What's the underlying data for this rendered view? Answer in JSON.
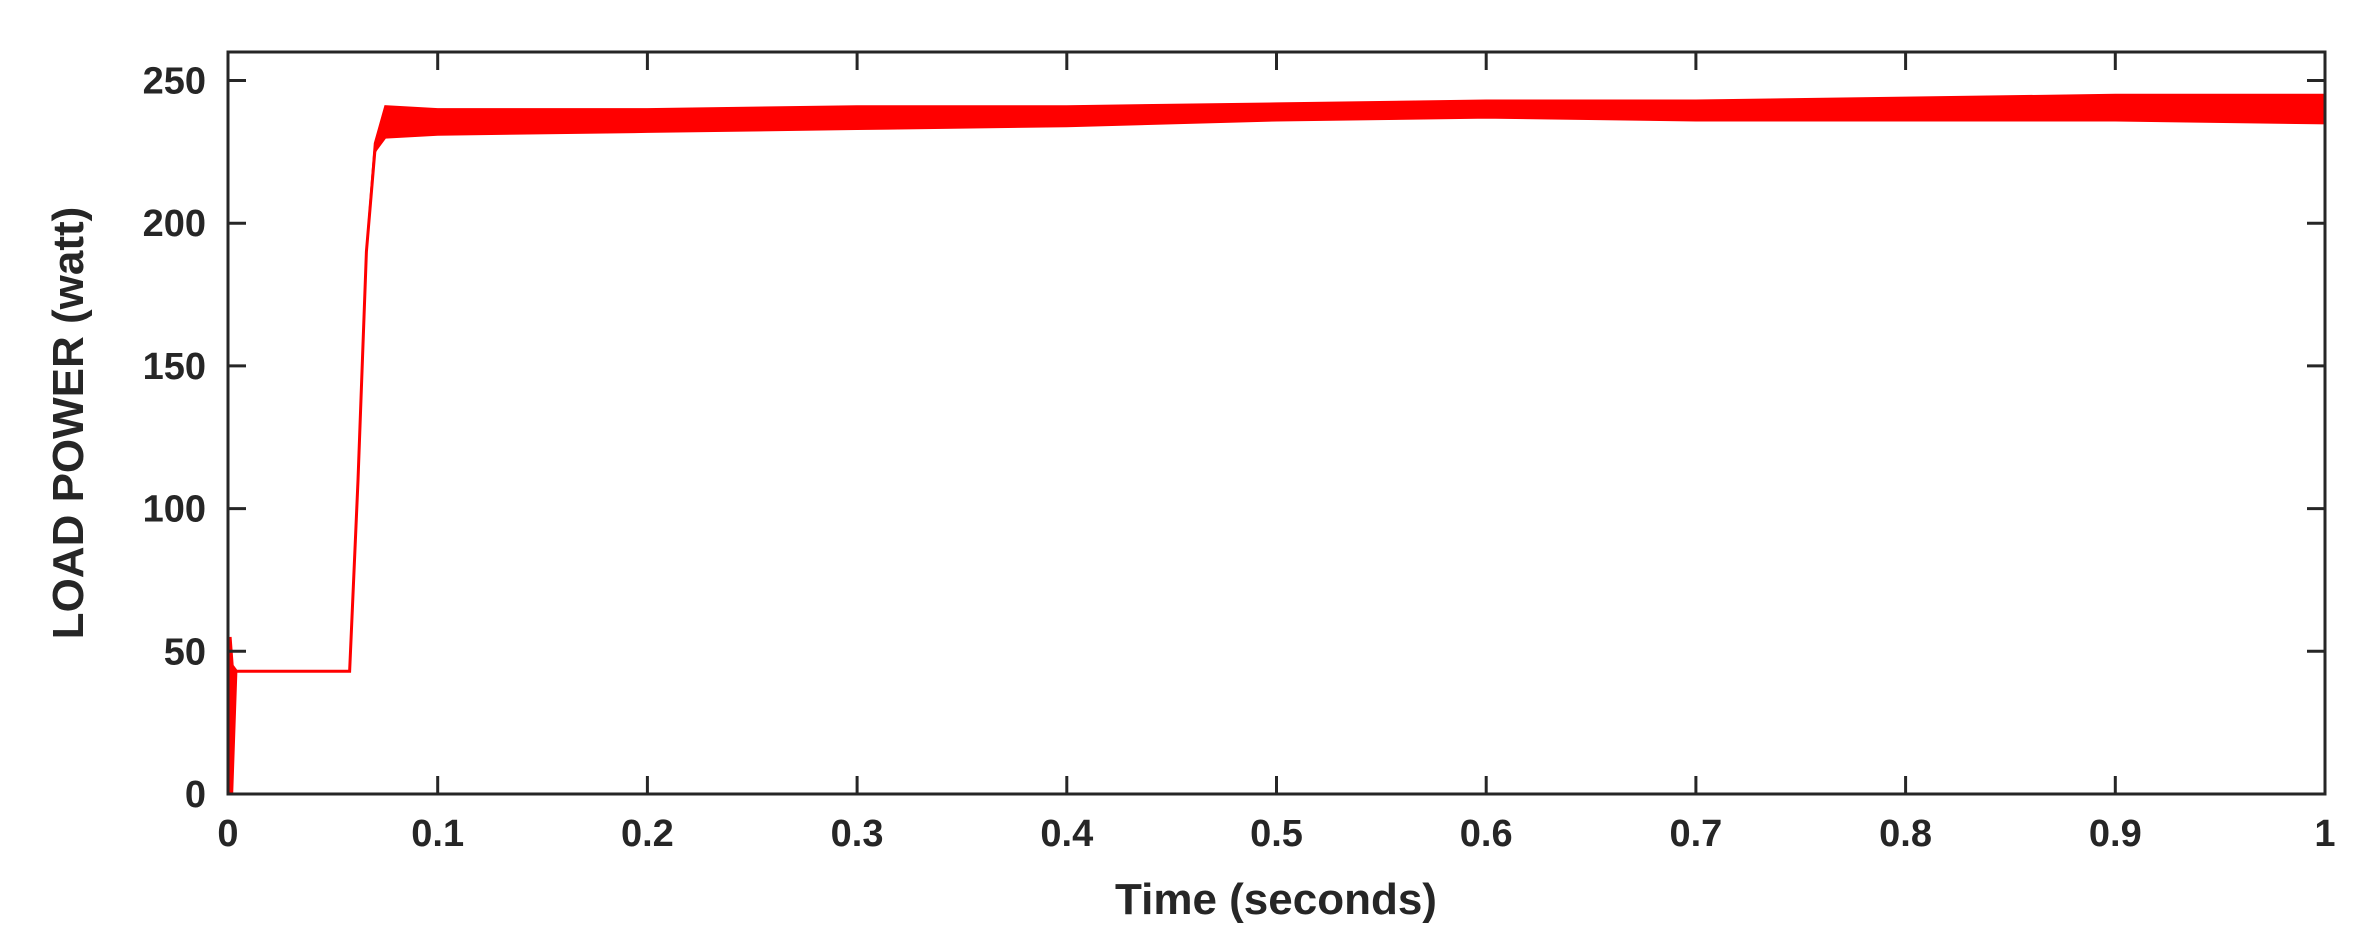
{
  "chart_data": {
    "type": "line",
    "title": "",
    "xlabel": "Time (seconds)",
    "ylabel": "LOAD POWER (watt)",
    "xlim": [
      0,
      1
    ],
    "ylim": [
      0,
      260
    ],
    "grid": false,
    "legend": "none",
    "x_ticks": [
      0,
      0.1,
      0.2,
      0.3,
      0.4,
      0.5,
      0.6,
      0.7,
      0.8,
      0.9,
      1
    ],
    "x_tick_labels": [
      "0",
      "0.1",
      "0.2",
      "0.3",
      "0.4",
      "0.5",
      "0.6",
      "0.7",
      "0.8",
      "0.9",
      "1"
    ],
    "y_ticks": [
      0,
      50,
      100,
      150,
      200,
      250
    ],
    "y_tick_labels": [
      "0",
      "50",
      "100",
      "150",
      "200",
      "250"
    ],
    "series": [
      {
        "color": "#ff0000",
        "x": [
          0,
          0.001,
          0.002,
          0.004,
          0.058,
          0.062,
          0.066,
          0.07,
          0.075,
          0.1,
          0.2,
          0.3,
          0.4,
          0.5,
          0.6,
          0.7,
          0.8,
          0.9,
          1.0
        ],
        "y": [
          0,
          55,
          45,
          43,
          43,
          110,
          190,
          225,
          236,
          236,
          236,
          237,
          238,
          239,
          240,
          240,
          240,
          240,
          240
        ],
        "ripple_min": [
          0,
          0,
          0,
          43,
          43,
          110,
          190,
          225,
          230,
          231,
          232,
          233,
          234,
          236,
          237,
          236,
          236,
          236,
          235
        ],
        "ripple_max": [
          0,
          55,
          45,
          43,
          43,
          110,
          190,
          228,
          241,
          240,
          240,
          241,
          241,
          242,
          243,
          243,
          244,
          245,
          245
        ]
      }
    ]
  }
}
